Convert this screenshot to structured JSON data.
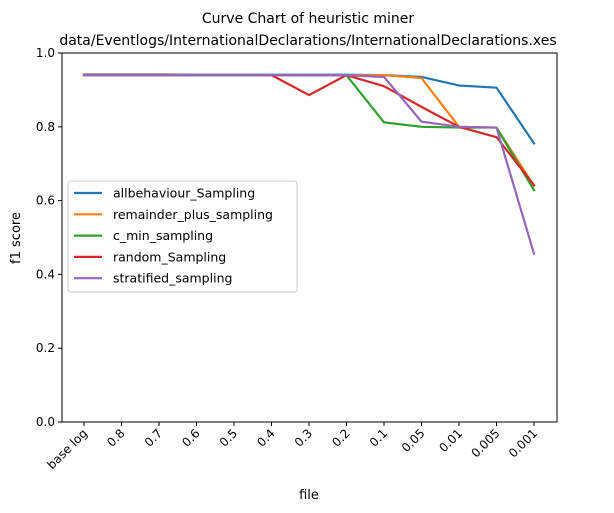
{
  "chart_data": {
    "type": "line",
    "title": "Curve Chart of heuristic miner",
    "subtitle": "data/Eventlogs/InternationalDeclarations/InternationalDeclarations.xes",
    "xlabel": "file",
    "ylabel": "f1 score",
    "ylim": [
      0.0,
      1.0
    ],
    "yticks": [
      "0.0",
      "0.2",
      "0.4",
      "0.6",
      "0.8",
      "1.0"
    ],
    "grid": false,
    "legend_position": "center-left",
    "categories": [
      "base log",
      "0.8",
      "0.7",
      "0.6",
      "0.5",
      "0.4",
      "0.3",
      "0.2",
      "0.1",
      "0.05",
      "0.01",
      "0.005",
      "0.001"
    ],
    "series": [
      {
        "name": "allbehaviour_Sampling",
        "color": "#1f77b4",
        "values": [
          0.942,
          0.942,
          0.942,
          0.941,
          0.941,
          0.941,
          0.941,
          0.941,
          0.94,
          0.935,
          0.912,
          0.906,
          0.755
        ]
      },
      {
        "name": "remainder_plus_sampling",
        "color": "#ff7f0e",
        "values": [
          0.941,
          0.941,
          0.941,
          0.94,
          0.94,
          0.94,
          0.94,
          0.94,
          0.94,
          0.932,
          0.8,
          0.798,
          0.64
        ]
      },
      {
        "name": "c_min_sampling",
        "color": "#2ca02c",
        "values": [
          0.94,
          0.94,
          0.94,
          0.94,
          0.94,
          0.94,
          0.94,
          0.94,
          0.812,
          0.8,
          0.798,
          0.798,
          0.628
        ]
      },
      {
        "name": "random_Sampling",
        "color": "#d62728",
        "values": [
          0.94,
          0.94,
          0.94,
          0.94,
          0.94,
          0.94,
          0.886,
          0.94,
          0.91,
          0.854,
          0.8,
          0.772,
          0.642
        ]
      },
      {
        "name": "stratified_sampling",
        "color": "#9467bd",
        "values": [
          0.94,
          0.94,
          0.94,
          0.94,
          0.94,
          0.94,
          0.94,
          0.94,
          0.935,
          0.814,
          0.8,
          0.798,
          0.456
        ]
      }
    ]
  }
}
